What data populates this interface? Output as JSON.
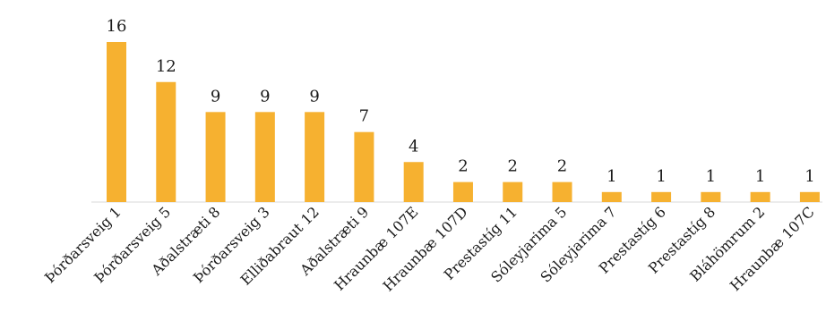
{
  "chart_data": {
    "type": "bar",
    "categories": [
      "Þórðarsveig 1",
      "Þórðarsveig 5",
      "Aðalstræti 8",
      "Þórðarsveig 3",
      "Elliðabraut 12",
      "Aðalstræti 9",
      "Hraunbæ 107E",
      "Hraunbæ 107D",
      "Prestastíg 11",
      "Sóleyjarima 5",
      "Sóleyjarima 7",
      "Prestastíg 6",
      "Prestastíg 8",
      "Bláhömrum 2",
      "Hraunbæ 107C"
    ],
    "values": [
      16,
      12,
      9,
      9,
      9,
      7,
      4,
      2,
      2,
      2,
      1,
      1,
      1,
      1,
      1
    ],
    "title": "",
    "xlabel": "",
    "ylabel": "",
    "ylim": [
      0,
      16
    ],
    "grid": false,
    "legend": "none",
    "bar_color": "#F6B130",
    "axis_color": "#D9D9D9"
  }
}
